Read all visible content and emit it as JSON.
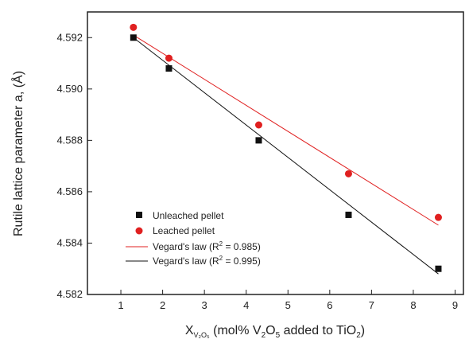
{
  "chart_data": {
    "type": "scatter",
    "title": "",
    "ylabel": "Rutile lattice parameter a, (Å)",
    "xlabel": {
      "main": "X",
      "sub": "V₂O₅",
      "rest_prefix": " (mol% V",
      "sub2": "2",
      "rest_mid": "O",
      "sub3": "5",
      "rest_suffix": " added to TiO",
      "sub4": "2",
      "rest_end": ")"
    },
    "xlim": [
      0.2,
      9.2
    ],
    "ylim": [
      4.582,
      4.593
    ],
    "x_ticks": [
      "1",
      "2",
      "3",
      "4",
      "5",
      "6",
      "7",
      "8",
      "9"
    ],
    "y_ticks": [
      "4.582",
      "4.584",
      "4.586",
      "4.588",
      "4.590",
      "4.592"
    ],
    "grid": false,
    "legend_position": "lower-left",
    "series": [
      {
        "name": "Unleached pellet",
        "marker": "square",
        "color": "#111111",
        "x": [
          1.3,
          2.15,
          4.3,
          6.45,
          8.6
        ],
        "y": [
          4.592,
          4.5908,
          4.588,
          4.5851,
          4.583
        ]
      },
      {
        "name": "Leached pellet",
        "marker": "circle",
        "color": "#e02020",
        "x": [
          1.3,
          2.15,
          4.3,
          6.45,
          8.6
        ],
        "y": [
          4.5924,
          4.5912,
          4.5886,
          4.5867,
          4.585
        ]
      }
    ],
    "fits": [
      {
        "name": "Vegard's law (R",
        "sup": "2",
        "name_end": " = 0.985)",
        "color": "#e02020",
        "x": [
          1.3,
          8.6
        ],
        "y": [
          4.5921,
          4.5847
        ]
      },
      {
        "name": "Vegard's law (R",
        "sup": "2",
        "name_end": " = 0.995)",
        "color": "#111111",
        "x": [
          1.3,
          8.6
        ],
        "y": [
          4.592,
          4.5828
        ]
      }
    ]
  }
}
